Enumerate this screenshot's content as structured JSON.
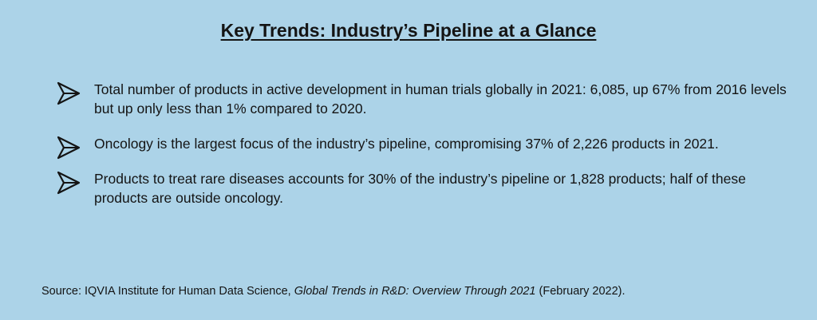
{
  "title": "Key Trends: Industry’s Pipeline at a Glance",
  "bullets": [
    {
      "icon": "arrow-pointer-icon",
      "text": "Total number of products in active development in human trials globally in 2021: 6,085, up 67% from 2016 levels but up only less than 1% compared to 2020."
    },
    {
      "icon": "arrow-pointer-icon",
      "text": "Oncology is the largest focus of the industry’s pipeline, compromising 37% of 2,226 products in 2021."
    },
    {
      "icon": "arrow-pointer-icon",
      "text": "Products to treat rare diseases accounts for 30% of the industry’s pipeline or 1,828 products; half of these products are outside oncology."
    }
  ],
  "source": {
    "prefix": "Source: IQVIA Institute for Human Data Science, ",
    "italic": "Global Trends in R&D: Overview Through 2021",
    "suffix": " (February 2022)."
  },
  "colors": {
    "background": "#acd3e8",
    "text": "#141414"
  }
}
